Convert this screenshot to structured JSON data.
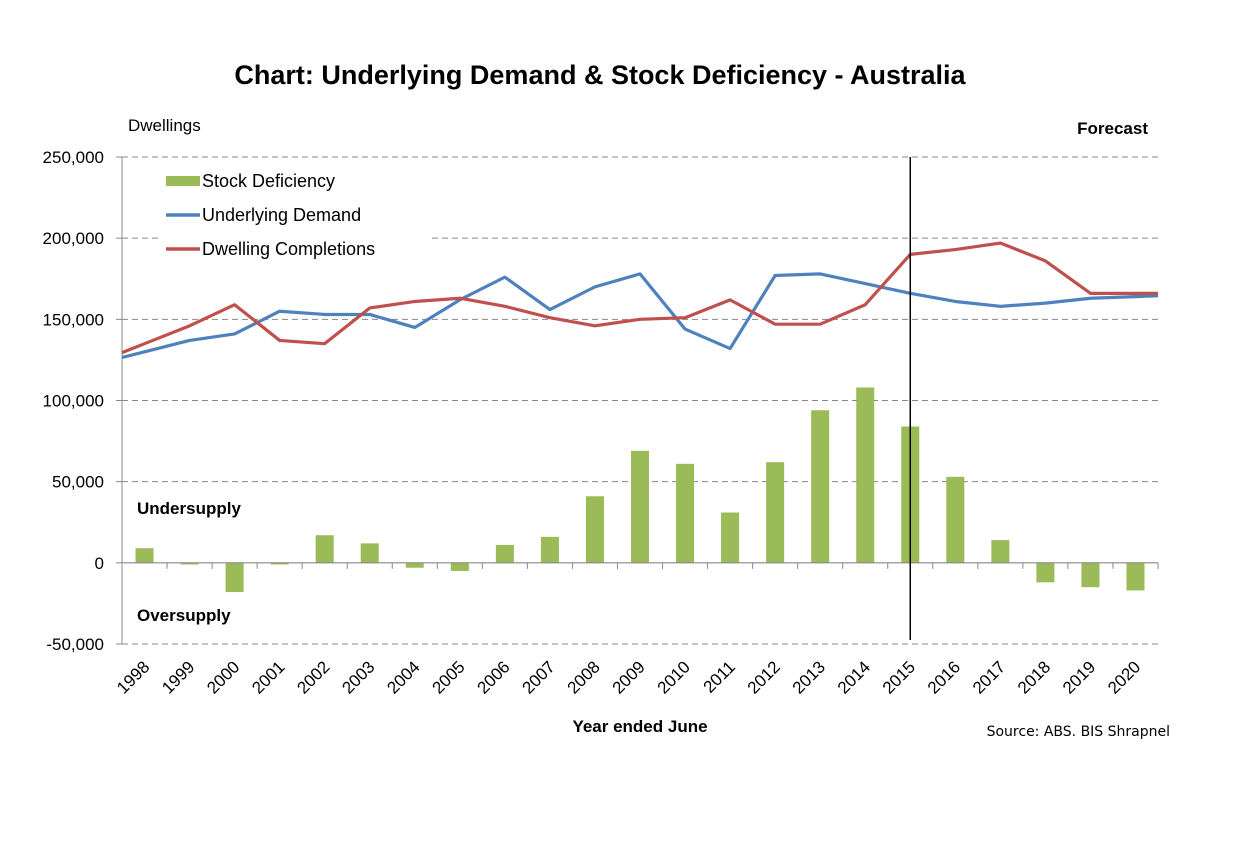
{
  "chart_data": {
    "type": "bar+line",
    "title": "Chart: Underlying Demand & Stock Deficiency - Australia",
    "ylabel": "Dwellings",
    "xlabel": "Year ended June",
    "source": "Source: ABS. BIS Shrapnel",
    "forecast_label": "Forecast",
    "forecast_start": "2015",
    "annotations": {
      "above_zero": "Undersupply",
      "below_zero": "Oversupply"
    },
    "ylim": [
      -50000,
      250000
    ],
    "yticks": [
      250000,
      200000,
      150000,
      100000,
      50000,
      0,
      -50000
    ],
    "ytick_labels": [
      "250,000",
      "200,000",
      "150,000",
      "100,000",
      "50,000",
      "0",
      "-50,000"
    ],
    "grid": "horizontal dashed",
    "legend_position": "top-left",
    "categories": [
      "1998",
      "1999",
      "2000",
      "2001",
      "2002",
      "2003",
      "2004",
      "2005",
      "2006",
      "2007",
      "2008",
      "2009",
      "2010",
      "2011",
      "2012",
      "2013",
      "2014",
      "2015",
      "2016",
      "2017",
      "2018",
      "2019",
      "2020"
    ],
    "series": [
      {
        "name": "Stock Deficiency",
        "type": "bar",
        "color": "#9bbb59",
        "values": [
          9000,
          -1000,
          -18000,
          -1000,
          17000,
          12000,
          -3000,
          -5000,
          11000,
          16000,
          41000,
          69000,
          61000,
          31000,
          62000,
          94000,
          108000,
          84000,
          53000,
          14000,
          -12000,
          -15000,
          -17000
        ]
      },
      {
        "name": "Underlying Demand",
        "type": "line",
        "color": "#4f81bd",
        "values": [
          130000,
          137000,
          141000,
          155000,
          153000,
          153000,
          145000,
          162000,
          176000,
          156000,
          170000,
          178000,
          144000,
          132000,
          177000,
          178000,
          172000,
          166000,
          161000,
          158000,
          160000,
          163000,
          164000
        ]
      },
      {
        "name": "Dwelling Completions",
        "type": "line",
        "color": "#c0504d",
        "values": [
          135000,
          146000,
          159000,
          137000,
          135000,
          157000,
          161000,
          163000,
          158000,
          151000,
          146000,
          150000,
          151000,
          162000,
          147000,
          147000,
          159000,
          190000,
          193000,
          197000,
          186000,
          166000,
          166000
        ]
      }
    ]
  }
}
